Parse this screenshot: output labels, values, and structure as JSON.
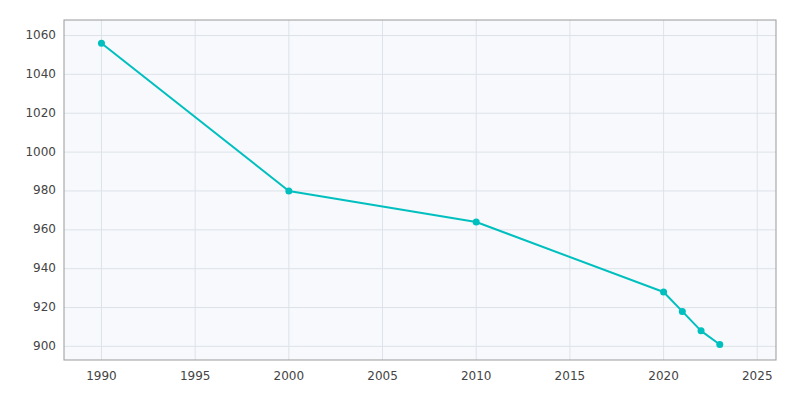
{
  "chart_data": {
    "type": "line",
    "x": [
      1990,
      2000,
      2010,
      2020,
      2021,
      2022,
      2023
    ],
    "values": [
      1056,
      980,
      964,
      928,
      918,
      908,
      901
    ],
    "color": "#00BFBF",
    "marker": "circle",
    "xlim": [
      1988,
      2026
    ],
    "ylim": [
      893,
      1068
    ],
    "xticks": [
      1990,
      1995,
      2000,
      2005,
      2010,
      2015,
      2020,
      2025
    ],
    "yticks": [
      900,
      920,
      940,
      960,
      980,
      1000,
      1020,
      1040,
      1060
    ],
    "grid": true
  }
}
